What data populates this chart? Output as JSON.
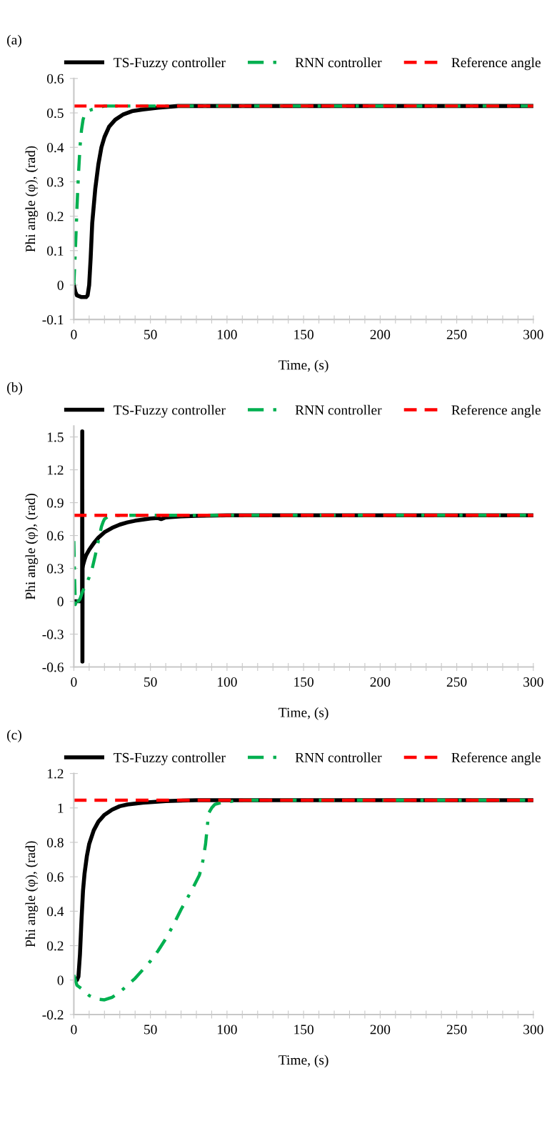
{
  "chart_data": [
    {
      "type": "line",
      "title": "(a)",
      "xlabel": "Time, (s)",
      "ylabel": "Phi angle (φ), (rad)",
      "legend": "top",
      "grid": false,
      "marker": "none",
      "xlim": [
        0,
        300
      ],
      "ylim": [
        -0.1,
        0.6
      ],
      "xticks": [
        0,
        {
          "value": 10,
          "label": null
        },
        {
          "value": 20,
          "label": null
        },
        {
          "value": 30,
          "label": null
        },
        {
          "value": 40,
          "label": null
        },
        50,
        {
          "value": 60,
          "label": null
        },
        {
          "value": 70,
          "label": null
        },
        {
          "value": 80,
          "label": null
        },
        {
          "value": 90,
          "label": null
        },
        100,
        {
          "value": 110,
          "label": null
        },
        {
          "value": 120,
          "label": null
        },
        {
          "value": 130,
          "label": null
        },
        {
          "value": 140,
          "label": null
        },
        150,
        {
          "value": 160,
          "label": null
        },
        {
          "value": 170,
          "label": null
        },
        {
          "value": 180,
          "label": null
        },
        {
          "value": 190,
          "label": null
        },
        200,
        {
          "value": 210,
          "label": null
        },
        {
          "value": 220,
          "label": null
        },
        {
          "value": 230,
          "label": null
        },
        {
          "value": 240,
          "label": null
        },
        250,
        {
          "value": 260,
          "label": null
        },
        {
          "value": 270,
          "label": null
        },
        {
          "value": 280,
          "label": null
        },
        {
          "value": 290,
          "label": null
        },
        300
      ],
      "yticks": [
        -0.1,
        0,
        0.1,
        0.2,
        0.3,
        0.4,
        0.5,
        0.6
      ],
      "series": [
        {
          "name": "TS-Fuzzy controller",
          "color": "#000000",
          "line_style": "solid",
          "x": [
            0,
            1,
            2,
            5,
            8,
            9,
            10,
            11,
            12,
            14,
            16,
            18,
            20,
            23,
            27,
            32,
            38,
            45,
            55,
            68,
            80,
            100,
            150,
            200,
            250,
            300
          ],
          "values": [
            0,
            -0.02,
            -0.03,
            -0.035,
            -0.035,
            -0.03,
            0,
            0.08,
            0.18,
            0.28,
            0.35,
            0.4,
            0.43,
            0.46,
            0.48,
            0.495,
            0.505,
            0.51,
            0.515,
            0.52,
            0.52,
            0.52,
            0.52,
            0.52,
            0.52,
            0.52
          ]
        },
        {
          "name": "RNN controller",
          "color": "#00b050",
          "line_style": "dashdot",
          "x": [
            0,
            1,
            2,
            3,
            4,
            5,
            6,
            7,
            9,
            12,
            16,
            20,
            30,
            50,
            100,
            150,
            200,
            250,
            300
          ],
          "values": [
            0,
            0.1,
            0.22,
            0.32,
            0.4,
            0.45,
            0.48,
            0.495,
            0.505,
            0.51,
            0.515,
            0.52,
            0.52,
            0.52,
            0.52,
            0.52,
            0.52,
            0.52,
            0.52
          ]
        },
        {
          "name": "Reference angle",
          "color": "#ff0000",
          "line_style": "dashed",
          "x": [
            0,
            300
          ],
          "values": [
            0.52,
            0.52
          ]
        }
      ]
    },
    {
      "type": "line",
      "title": "(b)",
      "xlabel": "Time, (s)",
      "ylabel": "Phi angle (φ), (rad)",
      "legend": "top",
      "grid": false,
      "marker": "none",
      "xlim": [
        0,
        300
      ],
      "ylim": [
        -0.6,
        1.6
      ],
      "xticks": [
        0,
        {
          "value": 10,
          "label": null
        },
        {
          "value": 20,
          "label": null
        },
        {
          "value": 30,
          "label": null
        },
        {
          "value": 40,
          "label": null
        },
        50,
        {
          "value": 60,
          "label": null
        },
        {
          "value": 70,
          "label": null
        },
        {
          "value": 80,
          "label": null
        },
        {
          "value": 90,
          "label": null
        },
        100,
        {
          "value": 110,
          "label": null
        },
        {
          "value": 120,
          "label": null
        },
        {
          "value": 130,
          "label": null
        },
        {
          "value": 140,
          "label": null
        },
        150,
        {
          "value": 160,
          "label": null
        },
        {
          "value": 170,
          "label": null
        },
        {
          "value": 180,
          "label": null
        },
        {
          "value": 190,
          "label": null
        },
        200,
        {
          "value": 210,
          "label": null
        },
        {
          "value": 220,
          "label": null
        },
        {
          "value": 230,
          "label": null
        },
        {
          "value": 240,
          "label": null
        },
        250,
        {
          "value": 260,
          "label": null
        },
        {
          "value": 270,
          "label": null
        },
        {
          "value": 280,
          "label": null
        },
        {
          "value": 290,
          "label": null
        },
        300
      ],
      "yticks": [
        -0.6,
        -0.3,
        0,
        0.3,
        0.6,
        0.9,
        1.2,
        1.5
      ],
      "series": [
        {
          "name": "TS-Fuzzy controller",
          "color": "#000000",
          "line_style": "solid",
          "x": [
            0,
            3,
            5,
            5.4,
            5.5,
            5.6,
            5.7,
            6,
            7,
            8,
            10,
            13,
            16,
            20,
            25,
            30,
            35,
            40,
            45,
            50,
            55,
            57,
            60,
            70,
            80,
            100,
            150,
            200,
            250,
            300
          ],
          "values": [
            0,
            0,
            0,
            0,
            1.55,
            -0.55,
            0.3,
            0.33,
            0.38,
            0.42,
            0.47,
            0.53,
            0.58,
            0.63,
            0.67,
            0.7,
            0.72,
            0.735,
            0.745,
            0.755,
            0.76,
            0.75,
            0.765,
            0.775,
            0.78,
            0.785,
            0.785,
            0.785,
            0.785,
            0.785
          ]
        },
        {
          "name": "RNN controller",
          "color": "#00b050",
          "line_style": "dashdot",
          "x": [
            0,
            0.5,
            1,
            2,
            3,
            4,
            6,
            8,
            10,
            12,
            14,
            16,
            18,
            19,
            20,
            22,
            26,
            30,
            50,
            100,
            150,
            200,
            250,
            300
          ],
          "values": [
            0.55,
            0.2,
            -0.03,
            0.05,
            0,
            0.02,
            0.1,
            0.15,
            0.22,
            0.3,
            0.42,
            0.55,
            0.68,
            0.72,
            0.75,
            0.77,
            0.78,
            0.785,
            0.785,
            0.785,
            0.785,
            0.785,
            0.785,
            0.785
          ]
        },
        {
          "name": "Reference angle",
          "color": "#ff0000",
          "line_style": "dashed",
          "x": [
            0,
            300
          ],
          "values": [
            0.785,
            0.785
          ]
        }
      ]
    },
    {
      "type": "line",
      "title": "(c)",
      "xlabel": "Time, (s)",
      "ylabel": "Phi angle (φ), (rad)",
      "legend": "top",
      "grid": false,
      "marker": "none",
      "xlim": [
        0,
        300
      ],
      "ylim": [
        -0.2,
        1.2
      ],
      "xticks": [
        0,
        {
          "value": 10,
          "label": null
        },
        {
          "value": 20,
          "label": null
        },
        {
          "value": 30,
          "label": null
        },
        {
          "value": 40,
          "label": null
        },
        50,
        {
          "value": 60,
          "label": null
        },
        {
          "value": 70,
          "label": null
        },
        {
          "value": 80,
          "label": null
        },
        {
          "value": 90,
          "label": null
        },
        100,
        {
          "value": 110,
          "label": null
        },
        {
          "value": 120,
          "label": null
        },
        {
          "value": 130,
          "label": null
        },
        {
          "value": 140,
          "label": null
        },
        150,
        {
          "value": 160,
          "label": null
        },
        {
          "value": 170,
          "label": null
        },
        {
          "value": 180,
          "label": null
        },
        {
          "value": 190,
          "label": null
        },
        200,
        {
          "value": 210,
          "label": null
        },
        {
          "value": 220,
          "label": null
        },
        {
          "value": 230,
          "label": null
        },
        {
          "value": 240,
          "label": null
        },
        250,
        {
          "value": 260,
          "label": null
        },
        {
          "value": 270,
          "label": null
        },
        {
          "value": 280,
          "label": null
        },
        {
          "value": 290,
          "label": null
        },
        300
      ],
      "yticks": [
        -0.2,
        0,
        0.2,
        0.4,
        0.6,
        0.8,
        1,
        1.2
      ],
      "series": [
        {
          "name": "TS-Fuzzy controller",
          "color": "#000000",
          "line_style": "solid",
          "x": [
            0,
            2,
            3,
            4,
            5,
            6,
            7,
            8.5,
            10,
            13,
            16,
            20,
            25,
            30,
            35,
            45,
            60,
            80,
            100,
            150,
            200,
            250,
            300
          ],
          "values": [
            0,
            0,
            0.02,
            0.15,
            0.35,
            0.52,
            0.62,
            0.72,
            0.79,
            0.87,
            0.92,
            0.96,
            0.99,
            1.01,
            1.02,
            1.03,
            1.04,
            1.045,
            1.045,
            1.045,
            1.045,
            1.045,
            1.045
          ]
        },
        {
          "name": "RNN controller",
          "color": "#00b050",
          "line_style": "dashdot",
          "x": [
            0,
            2,
            5,
            10,
            15,
            20,
            25,
            30,
            35,
            40,
            45,
            50,
            55,
            60,
            65,
            70,
            75,
            78,
            82,
            84,
            86,
            88,
            90,
            92,
            96,
            100,
            110,
            150,
            200,
            250,
            300
          ],
          "values": [
            0.03,
            -0.03,
            -0.05,
            -0.09,
            -0.11,
            -0.115,
            -0.1,
            -0.07,
            -0.03,
            0.01,
            0.06,
            0.11,
            0.17,
            0.24,
            0.32,
            0.41,
            0.49,
            0.54,
            0.61,
            0.68,
            0.79,
            0.97,
            1.0,
            1.02,
            1.03,
            1.035,
            1.045,
            1.045,
            1.045,
            1.045,
            1.045
          ]
        },
        {
          "name": "Reference angle",
          "color": "#ff0000",
          "line_style": "dashed",
          "x": [
            0,
            300
          ],
          "values": [
            1.045,
            1.045
          ]
        }
      ]
    }
  ]
}
